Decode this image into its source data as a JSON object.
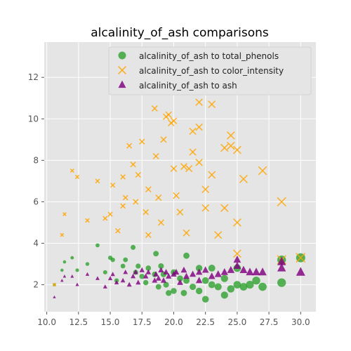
{
  "chart_data": {
    "type": "scatter",
    "title": "alcalinity_of_ash comparisons",
    "xlabel": "",
    "ylabel": "",
    "xlim": [
      9.8,
      31.2
    ],
    "ylim": [
      0.7,
      13.7
    ],
    "xticks": [
      10.0,
      12.5,
      15.0,
      17.5,
      20.0,
      22.5,
      25.0,
      27.5,
      30.0
    ],
    "xtick_labels": [
      "10.0",
      "12.5",
      "15.0",
      "17.5",
      "20.0",
      "22.5",
      "25.0",
      "27.5",
      "30.0"
    ],
    "yticks": [
      2,
      4,
      6,
      8,
      10,
      12
    ],
    "ytick_labels": [
      "2",
      "4",
      "6",
      "8",
      "10",
      "12"
    ],
    "grid": true,
    "legend_position": "top-right",
    "series": [
      {
        "name": "alcalinity_of_ash to total_phenols",
        "marker": "circle",
        "color": "#2ca02c",
        "points": [
          [
            10.6,
            2.0
          ],
          [
            11.2,
            2.7
          ],
          [
            11.4,
            3.1
          ],
          [
            12.0,
            3.3
          ],
          [
            12.4,
            2.7
          ],
          [
            13.2,
            3.0
          ],
          [
            14.0,
            3.9
          ],
          [
            14.6,
            2.6
          ],
          [
            15.0,
            3.3
          ],
          [
            15.2,
            3.2
          ],
          [
            15.5,
            2.2
          ],
          [
            16.0,
            2.9
          ],
          [
            16.2,
            3.2
          ],
          [
            16.8,
            3.8
          ],
          [
            17.0,
            2.6
          ],
          [
            17.2,
            2.9
          ],
          [
            17.5,
            2.4
          ],
          [
            17.8,
            2.1
          ],
          [
            18.0,
            2.8
          ],
          [
            18.5,
            2.5
          ],
          [
            18.6,
            3.5
          ],
          [
            18.8,
            1.9
          ],
          [
            19.0,
            2.9
          ],
          [
            19.2,
            2.5
          ],
          [
            19.4,
            2.0
          ],
          [
            19.6,
            1.6
          ],
          [
            20.0,
            2.6
          ],
          [
            20.0,
            1.7
          ],
          [
            20.5,
            2.3
          ],
          [
            20.8,
            1.6
          ],
          [
            21.0,
            3.4
          ],
          [
            21.0,
            2.2
          ],
          [
            21.5,
            1.9
          ],
          [
            22.0,
            2.8
          ],
          [
            22.0,
            1.7
          ],
          [
            22.5,
            2.2
          ],
          [
            22.5,
            1.3
          ],
          [
            23.0,
            2.0
          ],
          [
            23.0,
            2.8
          ],
          [
            23.5,
            1.9
          ],
          [
            24.0,
            1.5
          ],
          [
            24.0,
            2.3
          ],
          [
            24.5,
            1.8
          ],
          [
            25.0,
            2.8
          ],
          [
            25.0,
            2.0
          ],
          [
            25.5,
            1.9
          ],
          [
            26.0,
            2.0
          ],
          [
            26.5,
            2.2
          ],
          [
            27.0,
            1.9
          ],
          [
            28.5,
            3.2
          ],
          [
            28.5,
            2.1
          ],
          [
            30.0,
            3.3
          ]
        ]
      },
      {
        "name": "alcalinity_of_ash to color_intensity",
        "marker": "x",
        "color": "#ffa500",
        "points": [
          [
            10.6,
            2.0
          ],
          [
            11.2,
            4.4
          ],
          [
            11.4,
            5.4
          ],
          [
            12.0,
            7.5
          ],
          [
            12.4,
            7.2
          ],
          [
            13.2,
            5.1
          ],
          [
            14.0,
            7.0
          ],
          [
            14.6,
            5.2
          ],
          [
            15.0,
            5.4
          ],
          [
            15.2,
            6.8
          ],
          [
            15.6,
            4.6
          ],
          [
            16.0,
            7.2
          ],
          [
            16.0,
            5.8
          ],
          [
            16.2,
            6.2
          ],
          [
            16.5,
            8.7
          ],
          [
            16.8,
            7.8
          ],
          [
            17.0,
            6.0
          ],
          [
            17.2,
            7.3
          ],
          [
            17.5,
            8.9
          ],
          [
            17.8,
            5.5
          ],
          [
            18.0,
            6.6
          ],
          [
            18.0,
            4.4
          ],
          [
            18.5,
            10.5
          ],
          [
            18.6,
            8.2
          ],
          [
            18.8,
            6.2
          ],
          [
            19.0,
            5.0
          ],
          [
            19.2,
            9.0
          ],
          [
            19.4,
            10.1
          ],
          [
            19.6,
            10.2
          ],
          [
            19.8,
            9.8
          ],
          [
            20.0,
            9.9
          ],
          [
            20.0,
            7.6
          ],
          [
            20.2,
            6.3
          ],
          [
            20.5,
            5.5
          ],
          [
            20.8,
            7.7
          ],
          [
            21.0,
            4.5
          ],
          [
            21.2,
            7.6
          ],
          [
            21.5,
            9.4
          ],
          [
            21.5,
            8.4
          ],
          [
            22.0,
            10.8
          ],
          [
            22.0,
            9.6
          ],
          [
            22.0,
            7.9
          ],
          [
            22.5,
            6.6
          ],
          [
            22.5,
            5.7
          ],
          [
            23.0,
            10.7
          ],
          [
            23.0,
            7.3
          ],
          [
            23.5,
            4.4
          ],
          [
            24.0,
            8.6
          ],
          [
            24.0,
            5.7
          ],
          [
            24.5,
            9.2
          ],
          [
            24.5,
            8.7
          ],
          [
            25.0,
            8.5
          ],
          [
            25.0,
            5.0
          ],
          [
            25.0,
            3.5
          ],
          [
            25.5,
            7.1
          ],
          [
            27.0,
            7.5
          ],
          [
            28.5,
            6.0
          ],
          [
            28.5,
            3.2
          ],
          [
            30.0,
            3.3
          ]
        ]
      },
      {
        "name": "alcalinity_of_ash to ash",
        "marker": "triangle",
        "color": "#800080",
        "points": [
          [
            10.6,
            1.4
          ],
          [
            11.2,
            2.2
          ],
          [
            11.4,
            2.4
          ],
          [
            12.0,
            2.4
          ],
          [
            12.4,
            2.0
          ],
          [
            13.2,
            2.5
          ],
          [
            14.0,
            2.3
          ],
          [
            14.6,
            1.9
          ],
          [
            15.0,
            2.3
          ],
          [
            15.2,
            2.5
          ],
          [
            15.5,
            2.1
          ],
          [
            16.0,
            2.2
          ],
          [
            16.2,
            2.6
          ],
          [
            16.5,
            2.0
          ],
          [
            16.8,
            2.4
          ],
          [
            17.0,
            2.6
          ],
          [
            17.2,
            2.1
          ],
          [
            17.5,
            2.7
          ],
          [
            17.8,
            2.4
          ],
          [
            18.0,
            2.6
          ],
          [
            18.5,
            2.2
          ],
          [
            18.6,
            2.5
          ],
          [
            18.8,
            2.3
          ],
          [
            19.0,
            2.7
          ],
          [
            19.2,
            2.2
          ],
          [
            19.4,
            2.6
          ],
          [
            19.6,
            2.4
          ],
          [
            20.0,
            2.5
          ],
          [
            20.2,
            2.6
          ],
          [
            20.5,
            2.1
          ],
          [
            20.8,
            2.7
          ],
          [
            21.0,
            2.4
          ],
          [
            21.5,
            2.5
          ],
          [
            22.0,
            2.2
          ],
          [
            22.0,
            2.6
          ],
          [
            22.5,
            2.7
          ],
          [
            23.0,
            2.4
          ],
          [
            23.5,
            2.5
          ],
          [
            24.0,
            2.6
          ],
          [
            24.5,
            2.7
          ],
          [
            25.0,
            2.9
          ],
          [
            25.0,
            3.2
          ],
          [
            25.5,
            2.7
          ],
          [
            26.0,
            2.6
          ],
          [
            26.5,
            2.6
          ],
          [
            27.0,
            2.6
          ],
          [
            28.5,
            2.8
          ],
          [
            28.5,
            3.1
          ],
          [
            30.0,
            2.6
          ]
        ]
      }
    ]
  }
}
